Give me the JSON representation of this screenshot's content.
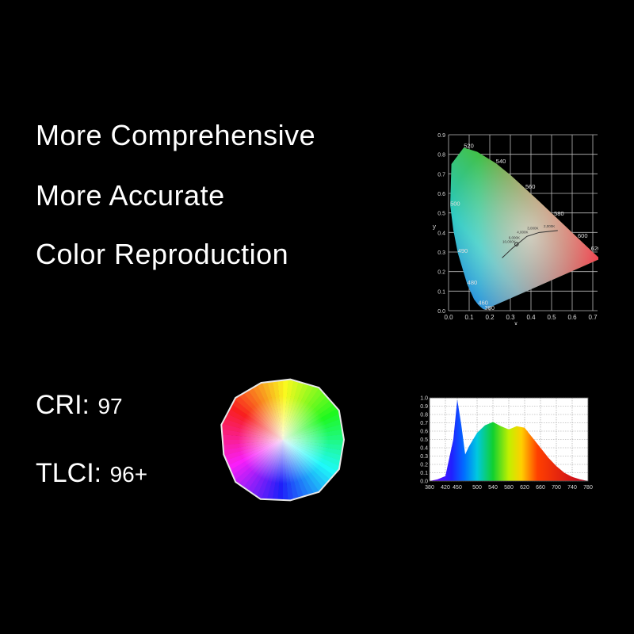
{
  "headlines": [
    "More Comprehensive",
    "More Accurate",
    "Color Reproduction"
  ],
  "metrics": {
    "cri_label": "CRI:",
    "cri_value": "97",
    "tlci_label": "TLCI:",
    "tlci_value": "96+"
  },
  "chart_data": [
    {
      "type": "scatter",
      "xlabel": "x",
      "ylabel": "y",
      "xlim": [
        0.0,
        0.7
      ],
      "ylim": [
        0.0,
        0.9
      ],
      "x_ticks": [
        "0.0",
        "0.1",
        "0.2",
        "0.3",
        "0.4",
        "0.5",
        "0.6",
        "0.7"
      ],
      "y_ticks": [
        "0.0",
        "0.1",
        "0.2",
        "0.3",
        "0.4",
        "0.5",
        "0.6",
        "0.7",
        "0.8",
        "0.9"
      ],
      "wavelength_labels": [
        {
          "text": "520",
          "x": 0.074,
          "y": 0.834
        },
        {
          "text": "540",
          "x": 0.23,
          "y": 0.754
        },
        {
          "text": "560",
          "x": 0.373,
          "y": 0.624
        },
        {
          "text": "500",
          "x": 0.008,
          "y": 0.538
        },
        {
          "text": "580",
          "x": 0.512,
          "y": 0.487
        },
        {
          "text": "600",
          "x": 0.627,
          "y": 0.372
        },
        {
          "text": "490",
          "x": 0.045,
          "y": 0.295
        },
        {
          "text": "620",
          "x": 0.691,
          "y": 0.308
        },
        {
          "text": "480",
          "x": 0.091,
          "y": 0.133
        },
        {
          "text": "380",
          "x": 0.175,
          "y": 0.005
        },
        {
          "text": "460",
          "x": 0.144,
          "y": 0.03
        }
      ],
      "cct_labels": [
        "10,000K",
        "6,000K",
        "4,000K",
        "3,000K",
        "2,000K"
      ],
      "point": {
        "x": 0.33,
        "y": 0.34
      }
    },
    {
      "type": "area",
      "x": [
        380,
        400,
        420,
        440,
        450,
        460,
        470,
        480,
        500,
        520,
        540,
        560,
        580,
        600,
        620,
        640,
        660,
        680,
        700,
        720,
        740,
        760,
        780
      ],
      "y": [
        0.0,
        0.02,
        0.06,
        0.5,
        0.98,
        0.68,
        0.32,
        0.42,
        0.58,
        0.67,
        0.71,
        0.66,
        0.62,
        0.66,
        0.64,
        0.52,
        0.4,
        0.28,
        0.18,
        0.1,
        0.05,
        0.02,
        0.0
      ],
      "x_ticks": [
        "380",
        "420",
        "450",
        "500",
        "540",
        "580",
        "620",
        "660",
        "700",
        "740",
        "780"
      ],
      "y_ticks": [
        "0.0",
        "0.1",
        "0.2",
        "0.3",
        "0.4",
        "0.5",
        "0.6",
        "0.7",
        "0.8",
        "0.9",
        "1.0"
      ],
      "xlim": [
        380,
        780
      ],
      "ylim": [
        0.0,
        1.0
      ]
    }
  ]
}
